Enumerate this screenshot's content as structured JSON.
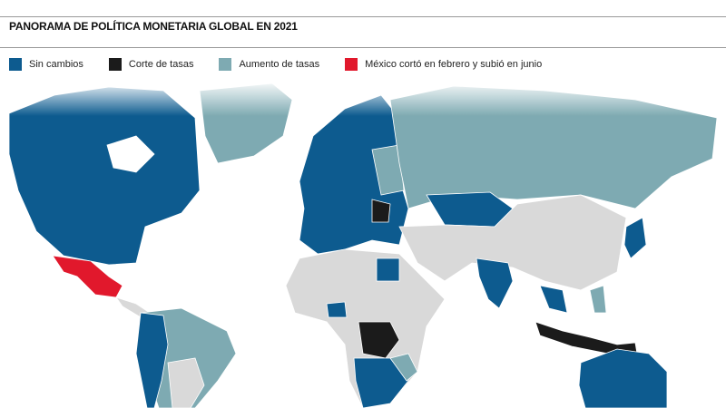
{
  "header": {
    "title": "PANORAMA DE POLÍTICA MONETARIA GLOBAL EN 2021"
  },
  "legend": {
    "items": [
      {
        "label": "Sin cambios",
        "color": "#0d5b8f"
      },
      {
        "label": "Corte de tasas",
        "color": "#1b1b1b"
      },
      {
        "label": "Aumento de tasas",
        "color": "#7eaab2"
      },
      {
        "label": "México cortó en febrero y subió en junio",
        "color": "#e1182c"
      }
    ]
  }
}
